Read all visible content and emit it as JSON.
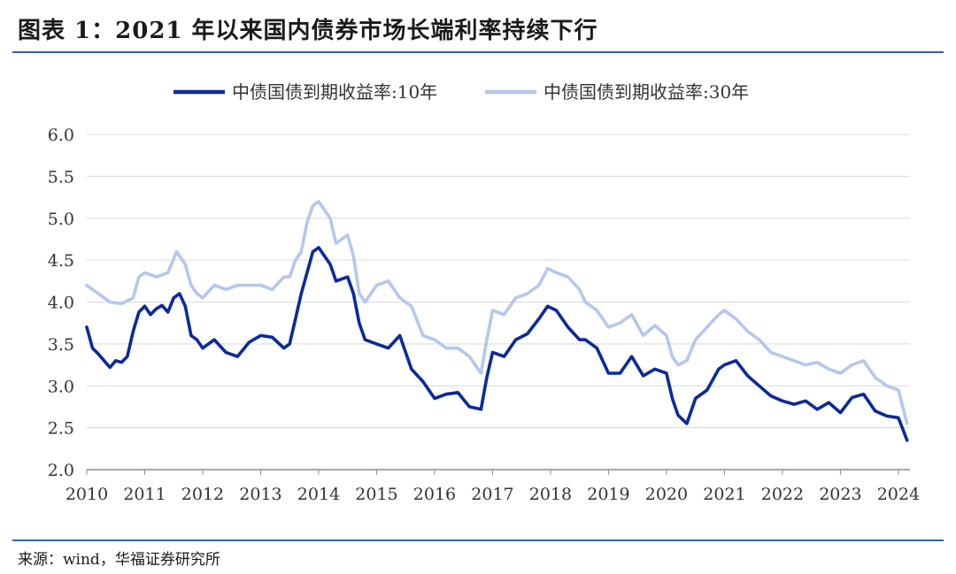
{
  "header": {
    "title": "图表 1：2021 年以来国内债券市场长端利率持续下行"
  },
  "footer": {
    "source": "来源：wind，华福证券研究所"
  },
  "chart_data": {
    "type": "line",
    "title": "",
    "xlabel": "",
    "ylabel": "",
    "ylim": [
      2.0,
      6.0
    ],
    "yticks": [
      "2.0",
      "2.5",
      "3.0",
      "3.5",
      "4.0",
      "4.5",
      "5.0",
      "5.5",
      "6.0"
    ],
    "xlim": [
      2010,
      2024.2
    ],
    "xticks": [
      "2010",
      "2011",
      "2012",
      "2013",
      "2014",
      "2015",
      "2016",
      "2017",
      "2018",
      "2019",
      "2020",
      "2021",
      "2022",
      "2023",
      "2024"
    ],
    "grid": "horizontal",
    "legend": "top-center",
    "colors": {
      "10y": "#0a2a9c",
      "30y": "#b4c7ef"
    },
    "series": [
      {
        "name": "中债国债到期收益率:10年",
        "color": "#0a2a9c",
        "x": [
          2010.0,
          2010.1,
          2010.2,
          2010.3,
          2010.4,
          2010.5,
          2010.6,
          2010.7,
          2010.8,
          2010.9,
          2011.0,
          2011.1,
          2011.2,
          2011.3,
          2011.4,
          2011.5,
          2011.6,
          2011.7,
          2011.8,
          2011.9,
          2012.0,
          2012.2,
          2012.4,
          2012.6,
          2012.8,
          2013.0,
          2013.2,
          2013.4,
          2013.5,
          2013.6,
          2013.7,
          2013.8,
          2013.9,
          2014.0,
          2014.1,
          2014.2,
          2014.3,
          2014.5,
          2014.6,
          2014.7,
          2014.8,
          2015.0,
          2015.2,
          2015.4,
          2015.6,
          2015.8,
          2016.0,
          2016.2,
          2016.4,
          2016.6,
          2016.8,
          2016.9,
          2017.0,
          2017.2,
          2017.4,
          2017.6,
          2017.8,
          2017.95,
          2018.1,
          2018.3,
          2018.5,
          2018.6,
          2018.8,
          2019.0,
          2019.2,
          2019.4,
          2019.6,
          2019.8,
          2020.0,
          2020.1,
          2020.2,
          2020.35,
          2020.5,
          2020.7,
          2020.9,
          2021.0,
          2021.2,
          2021.4,
          2021.6,
          2021.8,
          2022.0,
          2022.2,
          2022.4,
          2022.6,
          2022.8,
          2023.0,
          2023.2,
          2023.4,
          2023.6,
          2023.8,
          2024.0,
          2024.15
        ],
        "values": [
          3.7,
          3.45,
          3.38,
          3.3,
          3.22,
          3.3,
          3.28,
          3.35,
          3.65,
          3.88,
          3.95,
          3.85,
          3.92,
          3.96,
          3.88,
          4.05,
          4.1,
          3.95,
          3.6,
          3.55,
          3.45,
          3.55,
          3.4,
          3.35,
          3.52,
          3.6,
          3.58,
          3.45,
          3.5,
          3.8,
          4.1,
          4.35,
          4.6,
          4.65,
          4.55,
          4.45,
          4.25,
          4.3,
          4.1,
          3.75,
          3.55,
          3.5,
          3.45,
          3.6,
          3.2,
          3.05,
          2.85,
          2.9,
          2.92,
          2.75,
          2.72,
          3.1,
          3.4,
          3.35,
          3.55,
          3.62,
          3.8,
          3.95,
          3.9,
          3.7,
          3.55,
          3.55,
          3.45,
          3.15,
          3.15,
          3.35,
          3.12,
          3.2,
          3.15,
          2.85,
          2.65,
          2.55,
          2.85,
          2.95,
          3.2,
          3.25,
          3.3,
          3.12,
          3.0,
          2.88,
          2.82,
          2.78,
          2.82,
          2.72,
          2.8,
          2.68,
          2.86,
          2.9,
          2.7,
          2.64,
          2.62,
          2.35
        ]
      },
      {
        "name": "中债国债到期收益率:30年",
        "color": "#b4c7ef",
        "x": [
          2010.0,
          2010.1,
          2010.2,
          2010.4,
          2010.6,
          2010.8,
          2010.9,
          2011.0,
          2011.2,
          2011.4,
          2011.55,
          2011.7,
          2011.8,
          2011.9,
          2012.0,
          2012.2,
          2012.4,
          2012.6,
          2012.8,
          2013.0,
          2013.2,
          2013.4,
          2013.5,
          2013.6,
          2013.7,
          2013.8,
          2013.9,
          2014.0,
          2014.1,
          2014.2,
          2014.3,
          2014.5,
          2014.6,
          2014.7,
          2014.8,
          2015.0,
          2015.2,
          2015.4,
          2015.6,
          2015.8,
          2016.0,
          2016.2,
          2016.4,
          2016.6,
          2016.8,
          2016.9,
          2017.0,
          2017.2,
          2017.4,
          2017.6,
          2017.8,
          2017.95,
          2018.1,
          2018.3,
          2018.5,
          2018.6,
          2018.8,
          2019.0,
          2019.2,
          2019.4,
          2019.6,
          2019.8,
          2020.0,
          2020.1,
          2020.2,
          2020.35,
          2020.5,
          2020.7,
          2020.9,
          2021.0,
          2021.2,
          2021.4,
          2021.6,
          2021.8,
          2022.0,
          2022.2,
          2022.4,
          2022.6,
          2022.8,
          2023.0,
          2023.2,
          2023.4,
          2023.6,
          2023.8,
          2024.0,
          2024.15
        ],
        "values": [
          4.2,
          4.15,
          4.1,
          4.0,
          3.98,
          4.05,
          4.3,
          4.35,
          4.3,
          4.35,
          4.6,
          4.45,
          4.2,
          4.1,
          4.05,
          4.2,
          4.15,
          4.2,
          4.2,
          4.2,
          4.15,
          4.3,
          4.3,
          4.5,
          4.6,
          4.95,
          5.15,
          5.2,
          5.1,
          5.0,
          4.7,
          4.8,
          4.55,
          4.1,
          4.0,
          4.2,
          4.25,
          4.05,
          3.95,
          3.6,
          3.55,
          3.45,
          3.45,
          3.35,
          3.15,
          3.55,
          3.9,
          3.85,
          4.05,
          4.1,
          4.2,
          4.4,
          4.35,
          4.3,
          4.15,
          4.0,
          3.9,
          3.7,
          3.75,
          3.85,
          3.6,
          3.72,
          3.6,
          3.35,
          3.25,
          3.3,
          3.55,
          3.7,
          3.85,
          3.9,
          3.8,
          3.65,
          3.55,
          3.4,
          3.35,
          3.3,
          3.25,
          3.28,
          3.2,
          3.15,
          3.25,
          3.3,
          3.1,
          3.0,
          2.95,
          2.55
        ]
      }
    ]
  }
}
